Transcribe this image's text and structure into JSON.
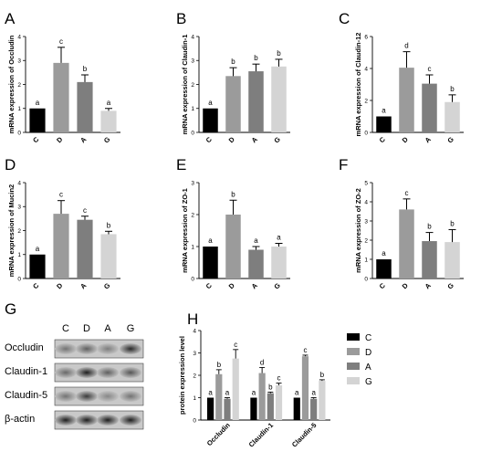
{
  "colors": {
    "C": "#000000",
    "D": "#9b9b9b",
    "A": "#7e7e7e",
    "G": "#d4d4d4"
  },
  "chart_data": [
    {
      "panel": "A",
      "type": "bar",
      "ylabel": "mRNA expression of Occludin",
      "categories": [
        "C",
        "D",
        "A",
        "G"
      ],
      "values": [
        1.0,
        2.9,
        2.1,
        0.9
      ],
      "errors": [
        0,
        0.65,
        0.3,
        0.1
      ],
      "letters": [
        "a",
        "c",
        "b",
        "a"
      ],
      "ylim": [
        0,
        4
      ],
      "yticks": [
        "0",
        "1",
        "2",
        "3",
        "4"
      ]
    },
    {
      "panel": "B",
      "type": "bar",
      "ylabel": "mRNA expression of Claudin-1",
      "categories": [
        "C",
        "D",
        "A",
        "G"
      ],
      "values": [
        1.0,
        2.35,
        2.55,
        2.75
      ],
      "errors": [
        0,
        0.35,
        0.3,
        0.3
      ],
      "letters": [
        "a",
        "b",
        "b",
        "b"
      ],
      "ylim": [
        0,
        4
      ],
      "yticks": [
        "0",
        "1",
        "2",
        "3",
        "4"
      ]
    },
    {
      "panel": "C",
      "type": "bar",
      "ylabel": "mRNA expression of Claudin-12",
      "categories": [
        "C",
        "D",
        "A",
        "G"
      ],
      "values": [
        1.0,
        4.05,
        3.05,
        1.9
      ],
      "errors": [
        0,
        1.0,
        0.55,
        0.45
      ],
      "letters": [
        "a",
        "d",
        "c",
        "b"
      ],
      "ylim": [
        0,
        6
      ],
      "yticks": [
        "0",
        "2",
        "4",
        "6"
      ]
    },
    {
      "panel": "D",
      "type": "bar",
      "ylabel": "mRNA expression of Mucin2",
      "categories": [
        "C",
        "D",
        "A",
        "G"
      ],
      "values": [
        1.0,
        2.7,
        2.45,
        1.85
      ],
      "errors": [
        0,
        0.55,
        0.15,
        0.12
      ],
      "letters": [
        "a",
        "c",
        "c",
        "b"
      ],
      "ylim": [
        0,
        4
      ],
      "yticks": [
        "0",
        "1",
        "2",
        "3",
        "4"
      ]
    },
    {
      "panel": "E",
      "type": "bar",
      "ylabel": "mRNA expression of ZO-1",
      "categories": [
        "C",
        "D",
        "A",
        "G"
      ],
      "values": [
        1.0,
        2.0,
        0.9,
        1.0
      ],
      "errors": [
        0,
        0.45,
        0.1,
        0.1
      ],
      "letters": [
        "a",
        "b",
        "a",
        "a"
      ],
      "ylim": [
        0,
        3
      ],
      "yticks": [
        "0",
        "1",
        "2",
        "3"
      ]
    },
    {
      "panel": "F",
      "type": "bar",
      "ylabel": "mRNA expression of ZO-2",
      "categories": [
        "C",
        "D",
        "A",
        "G"
      ],
      "values": [
        1.0,
        3.6,
        1.95,
        1.9
      ],
      "errors": [
        0,
        0.55,
        0.45,
        0.65
      ],
      "letters": [
        "a",
        "c",
        "b",
        "b"
      ],
      "ylim": [
        0,
        5
      ],
      "yticks": [
        "0",
        "1",
        "2",
        "3",
        "4",
        "5"
      ]
    },
    {
      "panel": "H",
      "type": "bar",
      "ylabel": "protein expression level",
      "categories": [
        "Occludin",
        "Claudin-1",
        "Claudin-5"
      ],
      "series": [
        {
          "name": "C",
          "values": [
            1.0,
            1.0,
            1.0
          ],
          "errors": [
            0,
            0,
            0
          ],
          "letters": [
            "a",
            "a",
            "a"
          ]
        },
        {
          "name": "D",
          "values": [
            2.05,
            2.1,
            2.85
          ],
          "errors": [
            0.2,
            0.25,
            0.05
          ],
          "letters": [
            "b",
            "d",
            "c"
          ]
        },
        {
          "name": "A",
          "values": [
            0.95,
            1.2,
            0.95
          ],
          "errors": [
            0.05,
            0.05,
            0.05
          ],
          "letters": [
            "a",
            "b",
            "a"
          ]
        },
        {
          "name": "G",
          "values": [
            2.75,
            1.55,
            1.75
          ],
          "errors": [
            0.4,
            0.1,
            0.05
          ],
          "letters": [
            "c",
            "c",
            "b"
          ]
        }
      ],
      "ylim": [
        0,
        4
      ],
      "yticks": [
        "0",
        "1",
        "2",
        "3",
        "4"
      ]
    }
  ],
  "blot": {
    "panel": "G",
    "lanes": [
      "C",
      "D",
      "A",
      "G"
    ],
    "rows": [
      {
        "label": "Occludin",
        "intensities": [
          0.45,
          0.55,
          0.4,
          0.85
        ]
      },
      {
        "label": "Claudin-1",
        "intensities": [
          0.5,
          0.9,
          0.55,
          0.6
        ]
      },
      {
        "label": "Claudin-5",
        "intensities": [
          0.45,
          0.75,
          0.35,
          0.45
        ]
      },
      {
        "label": "β-actin",
        "intensities": [
          0.9,
          0.9,
          0.9,
          0.9
        ]
      }
    ]
  }
}
